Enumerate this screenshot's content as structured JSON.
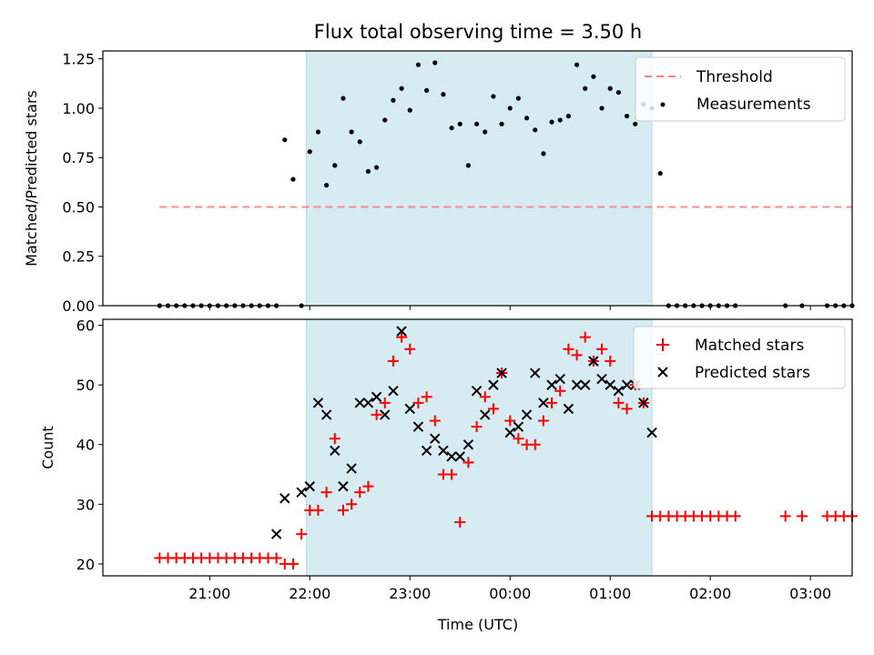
{
  "chart_data": [
    {
      "type": "scatter",
      "title": "Flux total observing time = 3.50 h",
      "xlabel": "",
      "ylabel": "Matched/Predicted stars",
      "ylim": [
        0,
        1.29
      ],
      "yticks": [
        "0.00",
        "0.25",
        "0.50",
        "0.75",
        "1.00",
        "1.25"
      ],
      "shaded_interval": [
        "21:58",
        "01:25"
      ],
      "legend_position": "upper right",
      "threshold": {
        "name": "Threshold",
        "value": 0.5,
        "x_start": "20:30",
        "x_end": "03:25",
        "color": "#ff7f7f"
      },
      "series": [
        {
          "name": "Measurements",
          "color": "#000000",
          "x": [
            "20:30",
            "20:35",
            "20:40",
            "20:45",
            "20:50",
            "20:55",
            "21:00",
            "21:05",
            "21:10",
            "21:15",
            "21:20",
            "21:25",
            "21:30",
            "21:35",
            "21:40",
            "21:45",
            "21:50",
            "21:55",
            "22:00",
            "22:05",
            "22:10",
            "22:15",
            "22:20",
            "22:25",
            "22:30",
            "22:35",
            "22:40",
            "22:45",
            "22:50",
            "22:55",
            "23:00",
            "23:05",
            "23:10",
            "23:15",
            "23:20",
            "23:25",
            "23:30",
            "23:35",
            "23:40",
            "23:45",
            "23:50",
            "23:55",
            "00:00",
            "00:05",
            "00:10",
            "00:15",
            "00:20",
            "00:25",
            "00:30",
            "00:35",
            "00:40",
            "00:45",
            "00:50",
            "00:55",
            "01:00",
            "01:05",
            "01:10",
            "01:15",
            "01:20",
            "01:25",
            "01:30",
            "01:35",
            "01:40",
            "01:45",
            "01:50",
            "01:55",
            "02:00",
            "02:05",
            "02:10",
            "02:15",
            "02:45",
            "02:55",
            "03:10",
            "03:15",
            "03:20",
            "03:25"
          ],
          "y": [
            0,
            0,
            0,
            0,
            0,
            0,
            0,
            0,
            0,
            0,
            0,
            0,
            0,
            0,
            0,
            0.84,
            0.64,
            0,
            0.78,
            0.88,
            0.61,
            0.71,
            1.05,
            0.88,
            0.83,
            0.68,
            0.7,
            0.94,
            1.04,
            1.1,
            0.99,
            1.22,
            1.09,
            1.23,
            1.07,
            0.9,
            0.92,
            0.71,
            0.92,
            0.88,
            1.06,
            0.92,
            1.0,
            1.05,
            0.95,
            0.89,
            0.77,
            0.93,
            0.94,
            0.96,
            1.22,
            1.1,
            1.16,
            1.0,
            1.1,
            1.08,
            0.96,
            0.92,
            1.02,
            1.0,
            0.67,
            0,
            0,
            0,
            0,
            0,
            0,
            0,
            0,
            0,
            0,
            0,
            0,
            0,
            0,
            0
          ]
        }
      ]
    },
    {
      "type": "scatter",
      "title": "",
      "xlabel": "Time (UTC)",
      "ylabel": "Count",
      "ylim": [
        18,
        61
      ],
      "yticks": [
        "20",
        "30",
        "40",
        "50",
        "60"
      ],
      "xticks": [
        "21:00",
        "22:00",
        "23:00",
        "00:00",
        "01:00",
        "02:00",
        "03:00"
      ],
      "legend_position": "upper right",
      "series": [
        {
          "name": "Matched stars",
          "marker": "+",
          "color": "#ff0000",
          "x": [
            "20:30",
            "20:35",
            "20:40",
            "20:45",
            "20:50",
            "20:55",
            "21:00",
            "21:05",
            "21:10",
            "21:15",
            "21:20",
            "21:25",
            "21:30",
            "21:35",
            "21:40",
            "21:45",
            "21:50",
            "21:55",
            "22:00",
            "22:05",
            "22:10",
            "22:15",
            "22:20",
            "22:25",
            "22:30",
            "22:35",
            "22:40",
            "22:45",
            "22:50",
            "22:55",
            "23:00",
            "23:05",
            "23:10",
            "23:15",
            "23:20",
            "23:25",
            "23:30",
            "23:35",
            "23:40",
            "23:45",
            "23:50",
            "23:55",
            "00:00",
            "00:05",
            "00:10",
            "00:15",
            "00:20",
            "00:25",
            "00:30",
            "00:35",
            "00:40",
            "00:45",
            "00:50",
            "00:55",
            "01:00",
            "01:05",
            "01:10",
            "01:15",
            "01:20",
            "01:25",
            "01:30",
            "01:35",
            "01:40",
            "01:45",
            "01:50",
            "01:55",
            "02:00",
            "02:05",
            "02:10",
            "02:15",
            "02:45",
            "02:55",
            "03:10",
            "03:15",
            "03:20",
            "03:25"
          ],
          "y": [
            21,
            21,
            21,
            21,
            21,
            21,
            21,
            21,
            21,
            21,
            21,
            21,
            21,
            21,
            21,
            20,
            20,
            25,
            29,
            29,
            32,
            41,
            29,
            30,
            32,
            33,
            45,
            47,
            54,
            58,
            56,
            47,
            48,
            44,
            35,
            35,
            27,
            37,
            43,
            48,
            46,
            52,
            44,
            41,
            40,
            40,
            44,
            47,
            49,
            56,
            55,
            58,
            54,
            56,
            54,
            47,
            46,
            50,
            47,
            28,
            28,
            28,
            28,
            28,
            28,
            28,
            28,
            28,
            28,
            28,
            28,
            28,
            28,
            28,
            28,
            28
          ]
        },
        {
          "name": "Predicted stars",
          "marker": "x",
          "color": "#000000",
          "x": [
            "21:40",
            "21:45",
            "21:55",
            "22:00",
            "22:05",
            "22:10",
            "22:15",
            "22:20",
            "22:25",
            "22:30",
            "22:35",
            "22:40",
            "22:45",
            "22:50",
            "22:55",
            "23:00",
            "23:05",
            "23:10",
            "23:15",
            "23:20",
            "23:25",
            "23:30",
            "23:35",
            "23:40",
            "23:45",
            "23:50",
            "23:55",
            "00:00",
            "00:05",
            "00:10",
            "00:15",
            "00:20",
            "00:25",
            "00:30",
            "00:35",
            "00:40",
            "00:45",
            "00:50",
            "00:55",
            "01:00",
            "01:05",
            "01:10",
            "01:15",
            "01:20",
            "01:25"
          ],
          "y": [
            25,
            31,
            32,
            33,
            47,
            45,
            39,
            33,
            36,
            47,
            47,
            48,
            45,
            49,
            59,
            46,
            43,
            39,
            41,
            39,
            38,
            38,
            40,
            49,
            45,
            50,
            52,
            42,
            43,
            45,
            52,
            47,
            50,
            51,
            46,
            50,
            50,
            54,
            51,
            50,
            49,
            50,
            50,
            47,
            42
          ]
        }
      ]
    }
  ]
}
